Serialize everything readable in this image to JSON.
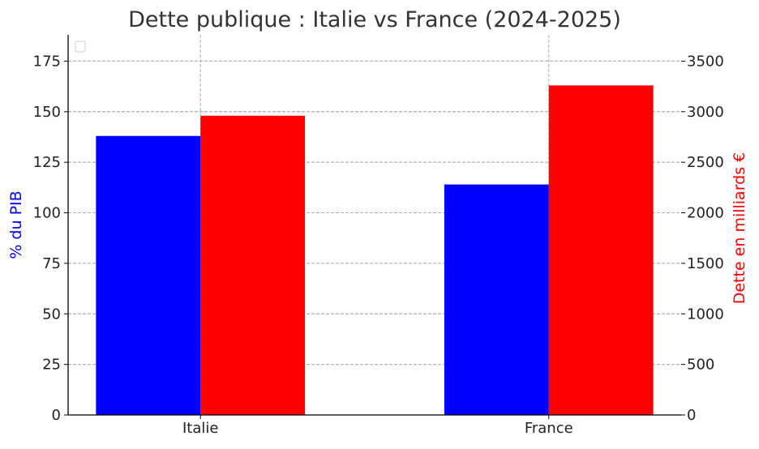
{
  "chart_data": {
    "type": "bar",
    "title": "Dette publique : Italie vs France (2024-2025)",
    "categories": [
      "Italie",
      "France"
    ],
    "y_left": {
      "label": "% du PIB",
      "color": "#0000ff",
      "lim": [
        0,
        188
      ],
      "ticks": [
        0,
        25,
        50,
        75,
        100,
        125,
        150,
        175
      ]
    },
    "y_right": {
      "label": "Dette en milliards €",
      "color": "#ff0000",
      "lim": [
        0,
        3760
      ],
      "ticks": [
        0,
        500,
        1000,
        1500,
        2000,
        2500,
        3000,
        3500
      ]
    },
    "series": [
      {
        "axis": "left",
        "color": "#0000ff",
        "values": [
          138,
          114
        ]
      },
      {
        "axis": "right",
        "color": "#ff0000",
        "values": [
          2960,
          3260
        ]
      }
    ],
    "grid": true,
    "legend": {
      "placement": "top-left",
      "entries": []
    }
  }
}
